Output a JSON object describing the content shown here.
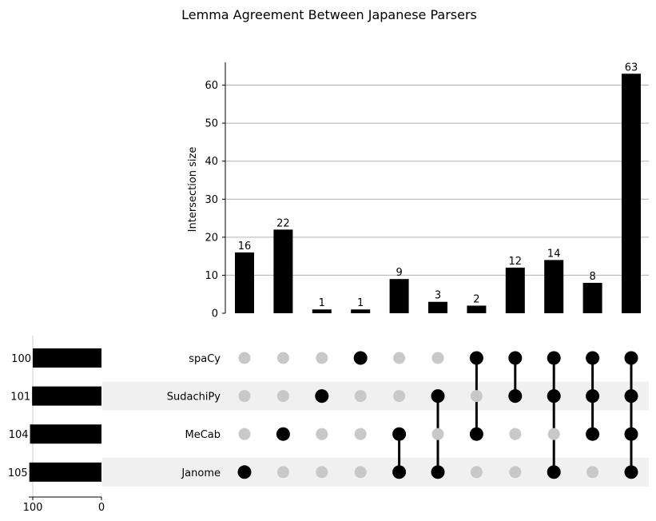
{
  "chart_data": {
    "type": "upset",
    "title": "Lemma Agreement Between Japanese Parsers",
    "ylabel": "Intersection size",
    "ylim": [
      0,
      66
    ],
    "yticks": [
      0,
      10,
      20,
      30,
      40,
      50,
      60
    ],
    "grid": true,
    "sets": [
      "spaCy",
      "SudachiPy",
      "MeCab",
      "Janome"
    ],
    "set_sizes": [
      100,
      101,
      104,
      105
    ],
    "set_size_axis": {
      "ticks": [
        100,
        0
      ],
      "max": 110
    },
    "intersections": [
      {
        "members": [
          "Janome"
        ],
        "size": 16
      },
      {
        "members": [
          "MeCab"
        ],
        "size": 22
      },
      {
        "members": [
          "SudachiPy"
        ],
        "size": 1
      },
      {
        "members": [
          "spaCy"
        ],
        "size": 1
      },
      {
        "members": [
          "MeCab",
          "Janome"
        ],
        "size": 9
      },
      {
        "members": [
          "SudachiPy",
          "Janome"
        ],
        "size": 3
      },
      {
        "members": [
          "spaCy",
          "MeCab"
        ],
        "size": 2
      },
      {
        "members": [
          "spaCy",
          "SudachiPy"
        ],
        "size": 12
      },
      {
        "members": [
          "spaCy",
          "SudachiPy",
          "Janome"
        ],
        "size": 14
      },
      {
        "members": [
          "spaCy",
          "SudachiPy",
          "MeCab"
        ],
        "size": 8
      },
      {
        "members": [
          "spaCy",
          "SudachiPy",
          "MeCab",
          "Janome"
        ],
        "size": 63
      }
    ],
    "colors": {
      "bar": "#000000",
      "dot_on": "#000000",
      "dot_off": "#c8c8c8",
      "stripe": "#f0f0f0",
      "grid": "#b0b0b0"
    }
  }
}
